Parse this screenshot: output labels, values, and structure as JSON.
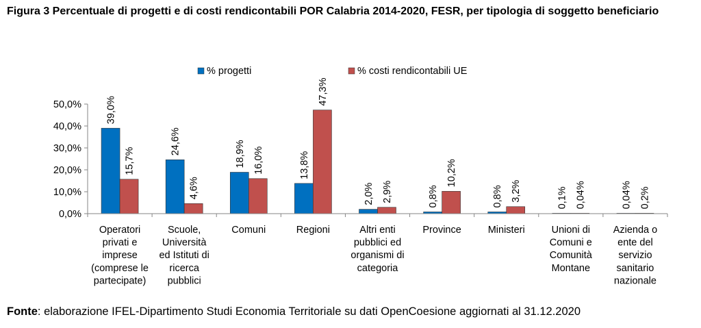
{
  "title": "Figura 3 Percentuale di progetti e di costi rendicontabili POR Calabria 2014-2020, FESR, per tipologia di soggetto beneficiario",
  "source": {
    "label": "Fonte",
    "text": ": elaborazione IFEL-Dipartimento Studi Economia Territoriale su dati OpenCoesione aggiornati al 31.12.2020"
  },
  "colors": {
    "progetti": "#0070C0",
    "costi": "#C0504D"
  },
  "chart_data": {
    "type": "bar",
    "title": "",
    "xlabel": "",
    "ylabel": "",
    "ylim": [
      0,
      50
    ],
    "yticks": [
      "0,0%",
      "10,0%",
      "20,0%",
      "30,0%",
      "40,0%",
      "50,0%"
    ],
    "legend_position": "top",
    "grid": false,
    "categories": [
      [
        "Operatori",
        "privati e",
        "imprese",
        "(comprese le",
        "partecipate)"
      ],
      [
        "Scuole,",
        "Università",
        "ed Istituti di",
        "ricerca",
        "pubblici"
      ],
      [
        "Comuni"
      ],
      [
        "Regioni"
      ],
      [
        "Altri enti",
        "pubblici ed",
        "organismi di",
        "categoria"
      ],
      [
        "Province"
      ],
      [
        "Ministeri"
      ],
      [
        "Unioni di",
        "Comuni e",
        "Comunità",
        "Montane"
      ],
      [
        "Azienda o",
        "ente del",
        "servizio",
        "sanitario",
        "nazionale"
      ]
    ],
    "series": [
      {
        "name": "% progetti",
        "values": [
          39.0,
          24.6,
          18.9,
          13.8,
          2.0,
          0.8,
          0.8,
          0.1,
          0.04
        ],
        "labels": [
          "39,0%",
          "24,6%",
          "18,9%",
          "13,8%",
          "2,0%",
          "0,8%",
          "0,8%",
          "0,1%",
          "0,04%"
        ]
      },
      {
        "name": "% costi rendicontabili UE",
        "values": [
          15.7,
          4.6,
          16.0,
          47.3,
          2.9,
          10.2,
          3.2,
          0.04,
          0.2
        ],
        "labels": [
          "15,7%",
          "4,6%",
          "16,0%",
          "47,3%",
          "2,9%",
          "10,2%",
          "3,2%",
          "0,04%",
          "0,2%"
        ]
      }
    ]
  }
}
